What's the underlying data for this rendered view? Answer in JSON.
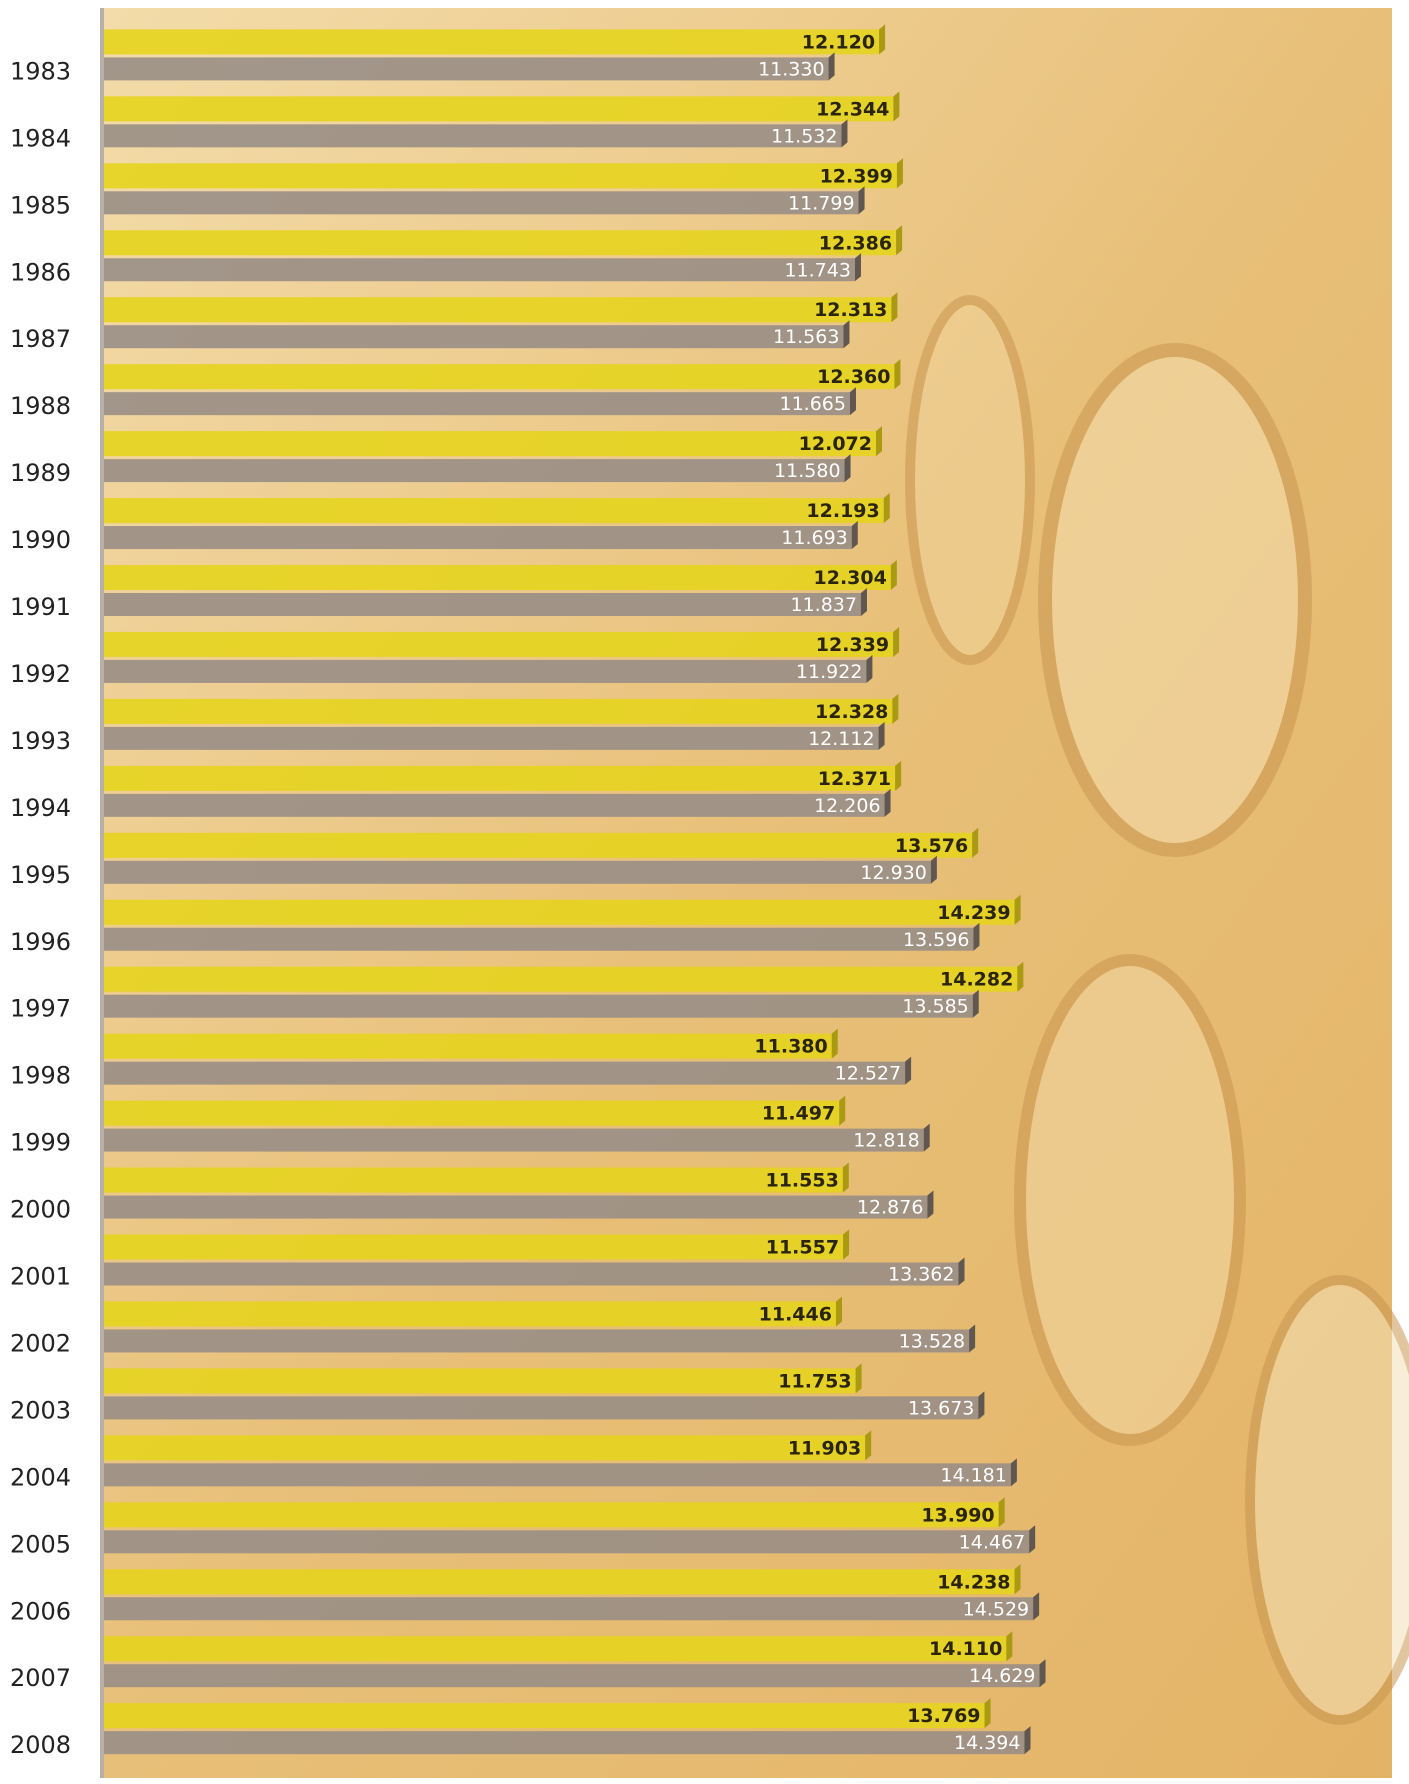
{
  "chart_data": {
    "type": "bar",
    "orientation": "horizontal",
    "categories": [
      "1983",
      "1984",
      "1985",
      "1986",
      "1987",
      "1988",
      "1989",
      "1990",
      "1991",
      "1992",
      "1993",
      "1994",
      "1995",
      "1996",
      "1997",
      "1998",
      "1999",
      "2000",
      "2001",
      "2002",
      "2003",
      "2004",
      "2005",
      "2006",
      "2007",
      "2008"
    ],
    "series": [
      {
        "color": "#e6d41e",
        "values": [
          12120,
          12344,
          12399,
          12386,
          12313,
          12360,
          12072,
          12193,
          12304,
          12339,
          12328,
          12371,
          13576,
          14239,
          14282,
          11380,
          11497,
          11553,
          11557,
          11446,
          11753,
          11903,
          13990,
          14238,
          14110,
          13769
        ],
        "value_labels": [
          "12.120",
          "12.344",
          "12.399",
          "12.386",
          "12.313",
          "12.360",
          "12.072",
          "12.193",
          "12.304",
          "12.339",
          "12.328",
          "12.371",
          "13.576",
          "14.239",
          "14.282",
          "11.380",
          "11.497",
          "11.553",
          "11.557",
          "11.446",
          "11.753",
          "11.903",
          "13.990",
          "14.238",
          "14.110",
          "13.769"
        ]
      },
      {
        "color": "#998e86",
        "values": [
          11330,
          11532,
          11799,
          11743,
          11563,
          11665,
          11580,
          11693,
          11837,
          11922,
          12112,
          12206,
          12930,
          13596,
          13585,
          12527,
          12818,
          12876,
          13362,
          13528,
          13673,
          14181,
          14467,
          14529,
          14629,
          14394
        ],
        "value_labels": [
          "11.330",
          "11.532",
          "11.799",
          "11.743",
          "11.563",
          "11.665",
          "11.580",
          "11.693",
          "11.837",
          "11.922",
          "12.112",
          "12.206",
          "12.930",
          "13.596",
          "13.585",
          "12.527",
          "12.818",
          "12.876",
          "13.362",
          "13.528",
          "13.673",
          "14.181",
          "14.467",
          "14.529",
          "14.629",
          "14.394"
        ]
      }
    ],
    "xlim": [
      0,
      20000
    ]
  }
}
